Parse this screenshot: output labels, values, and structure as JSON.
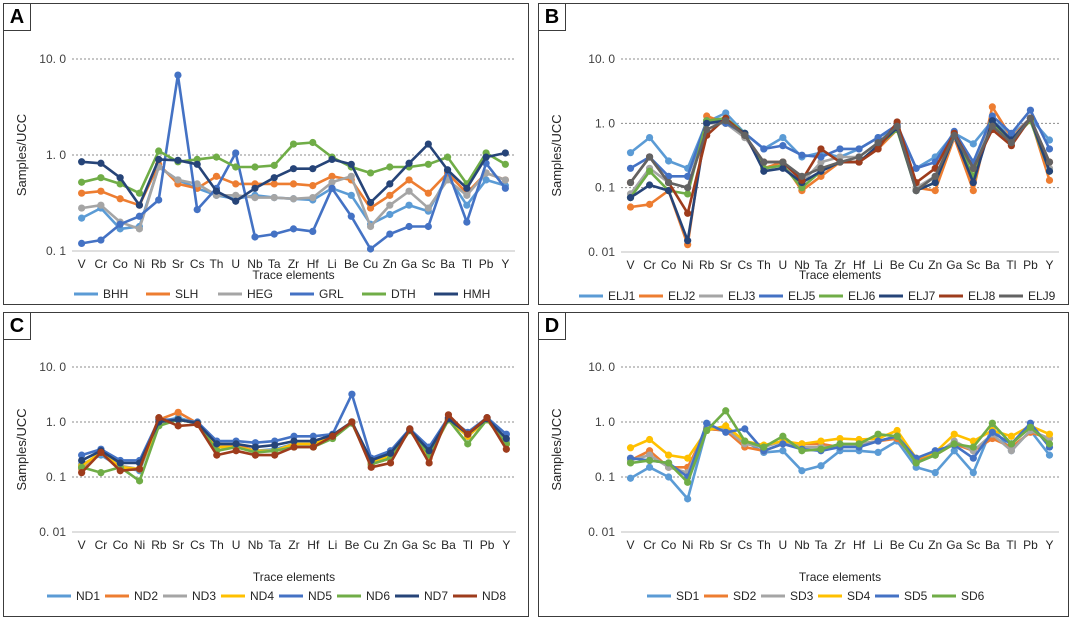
{
  "chart_data": [
    {
      "panel": "A",
      "type": "line",
      "yscale": "log",
      "ylabel": "Samples/UCC",
      "xlabel": "Trace elements",
      "ylim": [
        0.1,
        10
      ],
      "yticks": [
        {
          "v": 10,
          "label": "10. 0"
        },
        {
          "v": 1,
          "label": "1. 0"
        },
        {
          "v": 0.1,
          "label": "0. 1"
        }
      ],
      "categories": [
        "V",
        "Cr",
        "Co",
        "Ni",
        "Rb",
        "Sr",
        "Cs",
        "Th",
        "U",
        "Nb",
        "Ta",
        "Zr",
        "Hf",
        "Li",
        "Be",
        "Cu",
        "Zn",
        "Ga",
        "Sc",
        "Ba",
        "Tl",
        "Pb",
        "Y"
      ],
      "series": [
        {
          "name": "BHH",
          "color": "#5b9bd5",
          "values": [
            0.22,
            0.28,
            0.17,
            0.18,
            0.75,
            0.55,
            0.45,
            0.38,
            0.35,
            0.38,
            0.36,
            0.35,
            0.34,
            0.45,
            0.38,
            0.19,
            0.24,
            0.3,
            0.26,
            0.6,
            0.3,
            0.55,
            0.48
          ]
        },
        {
          "name": "SLH",
          "color": "#ed7d31",
          "values": [
            0.4,
            0.42,
            0.35,
            0.3,
            0.8,
            0.5,
            0.45,
            0.6,
            0.5,
            0.5,
            0.5,
            0.5,
            0.48,
            0.6,
            0.55,
            0.28,
            0.38,
            0.55,
            0.4,
            0.65,
            0.4,
            0.65,
            0.55
          ]
        },
        {
          "name": "HEG",
          "color": "#a5a5a5",
          "values": [
            0.28,
            0.3,
            0.2,
            0.17,
            0.75,
            0.55,
            0.5,
            0.38,
            0.38,
            0.36,
            0.36,
            0.35,
            0.36,
            0.52,
            0.6,
            0.18,
            0.3,
            0.42,
            0.28,
            0.55,
            0.38,
            0.65,
            0.55
          ]
        },
        {
          "name": "GRL",
          "color": "#4472c4",
          "values": [
            0.12,
            0.13,
            0.19,
            0.23,
            0.34,
            6.8,
            0.27,
            0.45,
            1.05,
            0.14,
            0.15,
            0.17,
            0.16,
            0.45,
            0.23,
            0.105,
            0.15,
            0.18,
            0.18,
            0.7,
            0.2,
            0.82,
            0.45
          ]
        },
        {
          "name": "DTH",
          "color": "#70ad47",
          "values": [
            0.52,
            0.58,
            0.5,
            0.4,
            1.1,
            0.85,
            0.9,
            0.95,
            0.75,
            0.75,
            0.78,
            1.3,
            1.35,
            0.95,
            0.75,
            0.65,
            0.75,
            0.75,
            0.8,
            0.95,
            0.5,
            1.05,
            0.8
          ]
        },
        {
          "name": "HMH",
          "color": "#264478",
          "values": [
            0.85,
            0.82,
            0.58,
            0.3,
            0.9,
            0.88,
            0.8,
            0.42,
            0.33,
            0.45,
            0.58,
            0.72,
            0.72,
            0.9,
            0.8,
            0.32,
            0.5,
            0.82,
            1.3,
            0.7,
            0.45,
            0.95,
            1.05
          ]
        }
      ]
    },
    {
      "panel": "B",
      "type": "line",
      "yscale": "log",
      "ylabel": "Samples/UCC",
      "xlabel": "Trace elements",
      "ylim": [
        0.01,
        10
      ],
      "yticks": [
        {
          "v": 10,
          "label": "10. 0"
        },
        {
          "v": 1,
          "label": "1. 0"
        },
        {
          "v": 0.1,
          "label": "0. 1"
        },
        {
          "v": 0.01,
          "label": "0. 01"
        }
      ],
      "categories": [
        "V",
        "Cr",
        "Co",
        "Ni",
        "Rb",
        "Sr",
        "Cs",
        "Th",
        "U",
        "Nb",
        "Ta",
        "Zr",
        "Hf",
        "Li",
        "Be",
        "Cu",
        "Zn",
        "Ga",
        "Sc",
        "Ba",
        "Tl",
        "Pb",
        "Y"
      ],
      "series": [
        {
          "name": "ELJ1",
          "color": "#5b9bd5",
          "values": [
            0.35,
            0.6,
            0.26,
            0.2,
            1.05,
            1.45,
            0.7,
            0.4,
            0.6,
            0.3,
            0.35,
            0.3,
            0.4,
            0.6,
            0.9,
            0.2,
            0.3,
            0.7,
            0.48,
            1.1,
            0.65,
            1.2,
            0.55
          ]
        },
        {
          "name": "ELJ2",
          "color": "#ed7d31",
          "values": [
            0.05,
            0.055,
            0.09,
            0.013,
            1.3,
            1.0,
            0.65,
            0.2,
            0.25,
            0.09,
            0.15,
            0.25,
            0.25,
            0.4,
            0.8,
            0.1,
            0.09,
            0.6,
            0.09,
            1.8,
            0.6,
            1.2,
            0.13
          ]
        },
        {
          "name": "ELJ3",
          "color": "#a5a5a5",
          "values": [
            0.08,
            0.2,
            0.12,
            0.1,
            1.0,
            1.0,
            0.6,
            0.25,
            0.25,
            0.12,
            0.25,
            0.3,
            0.3,
            0.5,
            0.85,
            0.1,
            0.15,
            0.6,
            0.2,
            1.0,
            0.6,
            1.1,
            0.2
          ]
        },
        {
          "name": "ELJ5",
          "color": "#4472c4",
          "values": [
            0.2,
            0.3,
            0.15,
            0.15,
            1.1,
            1.0,
            0.7,
            0.4,
            0.45,
            0.32,
            0.3,
            0.4,
            0.4,
            0.6,
            0.95,
            0.2,
            0.25,
            0.75,
            0.25,
            1.3,
            0.7,
            1.6,
            0.4
          ]
        },
        {
          "name": "ELJ6",
          "color": "#70ad47",
          "values": [
            0.07,
            0.18,
            0.09,
            0.08,
            1.1,
            1.2,
            0.7,
            0.2,
            0.22,
            0.1,
            0.18,
            0.25,
            0.25,
            0.45,
            0.8,
            0.09,
            0.12,
            0.65,
            0.15,
            1.0,
            0.55,
            1.1,
            0.18
          ]
        },
        {
          "name": "ELJ7",
          "color": "#264478",
          "values": [
            0.07,
            0.11,
            0.09,
            0.015,
            1.0,
            1.1,
            0.7,
            0.18,
            0.2,
            0.12,
            0.18,
            0.25,
            0.25,
            0.45,
            0.85,
            0.09,
            0.12,
            0.65,
            0.12,
            1.1,
            0.55,
            1.2,
            0.18
          ]
        },
        {
          "name": "ELJ8",
          "color": "#9e3c1c",
          "values": [
            0.12,
            0.3,
            0.12,
            0.04,
            0.65,
            1.2,
            0.65,
            0.25,
            0.25,
            0.13,
            0.4,
            0.25,
            0.25,
            0.4,
            1.05,
            0.12,
            0.2,
            0.7,
            0.2,
            0.8,
            0.45,
            1.2,
            0.25
          ]
        },
        {
          "name": "ELJ9",
          "color": "#636363",
          "values": [
            0.12,
            0.3,
            0.12,
            0.1,
            0.8,
            1.1,
            0.65,
            0.25,
            0.25,
            0.15,
            0.2,
            0.25,
            0.3,
            0.5,
            0.9,
            0.09,
            0.15,
            0.65,
            0.2,
            0.9,
            0.5,
            1.2,
            0.25
          ]
        }
      ]
    },
    {
      "panel": "C",
      "type": "line",
      "yscale": "log",
      "ylabel": "Samples/UCC",
      "xlabel": "Trace elements",
      "ylim": [
        0.01,
        10
      ],
      "yticks": [
        {
          "v": 10,
          "label": "10. 0"
        },
        {
          "v": 1,
          "label": "1. 0"
        },
        {
          "v": 0.1,
          "label": "0. 1"
        },
        {
          "v": 0.01,
          "label": "0. 01"
        }
      ],
      "categories": [
        "V",
        "Cr",
        "Co",
        "Ni",
        "Rb",
        "Sr",
        "Cs",
        "Th",
        "U",
        "Nb",
        "Ta",
        "Zr",
        "Hf",
        "Li",
        "Be",
        "Cu",
        "Zn",
        "Ga",
        "Sc",
        "Ba",
        "Tl",
        "Pb",
        "Y"
      ],
      "series": [
        {
          "name": "ND1",
          "color": "#5b9bd5",
          "values": [
            0.17,
            0.25,
            0.15,
            0.13,
            1.0,
            1.2,
            0.95,
            0.35,
            0.38,
            0.3,
            0.32,
            0.4,
            0.4,
            0.55,
            1.0,
            0.18,
            0.25,
            0.7,
            0.25,
            1.1,
            0.55,
            1.1,
            0.45
          ]
        },
        {
          "name": "ND2",
          "color": "#ed7d31",
          "values": [
            0.14,
            0.28,
            0.15,
            0.14,
            1.1,
            1.5,
            0.95,
            0.4,
            0.38,
            0.3,
            0.3,
            0.38,
            0.38,
            0.55,
            1.0,
            0.17,
            0.22,
            0.7,
            0.22,
            1.2,
            0.55,
            1.1,
            0.4
          ]
        },
        {
          "name": "ND3",
          "color": "#a5a5a5",
          "values": [
            0.15,
            0.28,
            0.16,
            0.14,
            1.0,
            1.1,
            0.95,
            0.35,
            0.35,
            0.3,
            0.3,
            0.38,
            0.38,
            0.55,
            1.0,
            0.18,
            0.24,
            0.7,
            0.24,
            1.1,
            0.55,
            1.1,
            0.4
          ]
        },
        {
          "name": "ND4",
          "color": "#ffc000",
          "values": [
            0.16,
            0.28,
            0.15,
            0.14,
            1.0,
            1.1,
            0.95,
            0.35,
            0.35,
            0.3,
            0.3,
            0.4,
            0.4,
            0.55,
            1.0,
            0.18,
            0.24,
            0.7,
            0.24,
            1.1,
            0.55,
            1.1,
            0.4
          ]
        },
        {
          "name": "ND5",
          "color": "#4472c4",
          "values": [
            0.25,
            0.32,
            0.2,
            0.2,
            1.1,
            1.1,
            1.0,
            0.45,
            0.45,
            0.42,
            0.45,
            0.55,
            0.55,
            0.6,
            3.2,
            0.22,
            0.3,
            0.75,
            0.35,
            1.2,
            0.65,
            1.2,
            0.6
          ]
        },
        {
          "name": "ND6",
          "color": "#70ad47",
          "values": [
            0.15,
            0.12,
            0.15,
            0.085,
            0.85,
            1.1,
            0.95,
            0.3,
            0.35,
            0.28,
            0.3,
            0.35,
            0.35,
            0.5,
            0.95,
            0.17,
            0.22,
            0.7,
            0.25,
            1.1,
            0.4,
            1.1,
            0.4
          ]
        },
        {
          "name": "ND7",
          "color": "#264478",
          "values": [
            0.2,
            0.3,
            0.18,
            0.18,
            1.0,
            1.1,
            0.95,
            0.4,
            0.4,
            0.35,
            0.38,
            0.45,
            0.45,
            0.58,
            1.0,
            0.2,
            0.27,
            0.72,
            0.3,
            1.15,
            0.6,
            1.15,
            0.5
          ]
        },
        {
          "name": "ND8",
          "color": "#9e3c1c",
          "values": [
            0.12,
            0.28,
            0.13,
            0.14,
            1.2,
            0.85,
            0.9,
            0.25,
            0.3,
            0.25,
            0.25,
            0.35,
            0.35,
            0.55,
            1.0,
            0.15,
            0.18,
            0.75,
            0.18,
            1.35,
            0.6,
            1.2,
            0.32
          ]
        }
      ]
    },
    {
      "panel": "D",
      "type": "line",
      "yscale": "log",
      "ylabel": "Samples/UCC",
      "xlabel": "Trace elements",
      "ylim": [
        0.01,
        10
      ],
      "yticks": [
        {
          "v": 10,
          "label": "10. 0"
        },
        {
          "v": 1,
          "label": "1. 0"
        },
        {
          "v": 0.1,
          "label": "0. 1"
        },
        {
          "v": 0.01,
          "label": "0. 01"
        }
      ],
      "categories": [
        "V",
        "Cr",
        "Co",
        "Ni",
        "Rb",
        "Sr",
        "Cs",
        "Th",
        "U",
        "Nb",
        "Ta",
        "Zr",
        "Hf",
        "Li",
        "Be",
        "Cu",
        "Zn",
        "Ga",
        "Sc",
        "Ba",
        "Tl",
        "Pb",
        "Y"
      ],
      "series": [
        {
          "name": "SD1",
          "color": "#5b9bd5",
          "values": [
            0.095,
            0.15,
            0.1,
            0.04,
            0.75,
            0.7,
            0.45,
            0.28,
            0.3,
            0.13,
            0.16,
            0.3,
            0.3,
            0.28,
            0.45,
            0.15,
            0.12,
            0.3,
            0.12,
            0.8,
            0.3,
            0.7,
            0.25
          ]
        },
        {
          "name": "SD2",
          "color": "#ed7d31",
          "values": [
            0.2,
            0.3,
            0.15,
            0.15,
            0.75,
            0.7,
            0.35,
            0.3,
            0.4,
            0.4,
            0.4,
            0.35,
            0.4,
            0.45,
            0.5,
            0.2,
            0.25,
            0.4,
            0.3,
            0.5,
            0.35,
            0.65,
            0.5
          ]
        },
        {
          "name": "SD3",
          "color": "#a5a5a5",
          "values": [
            0.2,
            0.25,
            0.15,
            0.12,
            0.8,
            0.75,
            0.4,
            0.35,
            0.45,
            0.35,
            0.35,
            0.35,
            0.4,
            0.45,
            0.55,
            0.18,
            0.25,
            0.45,
            0.3,
            0.6,
            0.3,
            0.7,
            0.5
          ]
        },
        {
          "name": "SD4",
          "color": "#ffc000",
          "values": [
            0.34,
            0.48,
            0.25,
            0.22,
            0.7,
            0.85,
            0.45,
            0.38,
            0.45,
            0.4,
            0.45,
            0.5,
            0.48,
            0.5,
            0.7,
            0.22,
            0.28,
            0.6,
            0.45,
            0.7,
            0.55,
            0.85,
            0.6
          ]
        },
        {
          "name": "SD5",
          "color": "#4472c4",
          "values": [
            0.22,
            0.2,
            0.18,
            0.1,
            0.95,
            0.65,
            0.75,
            0.3,
            0.4,
            0.32,
            0.3,
            0.35,
            0.35,
            0.45,
            0.55,
            0.22,
            0.3,
            0.38,
            0.22,
            0.65,
            0.4,
            0.95,
            0.35
          ]
        },
        {
          "name": "SD6",
          "color": "#70ad47",
          "values": [
            0.18,
            0.2,
            0.18,
            0.08,
            0.7,
            1.6,
            0.45,
            0.35,
            0.55,
            0.3,
            0.32,
            0.4,
            0.4,
            0.6,
            0.55,
            0.18,
            0.25,
            0.4,
            0.35,
            0.95,
            0.4,
            0.8,
            0.4
          ]
        }
      ]
    }
  ]
}
